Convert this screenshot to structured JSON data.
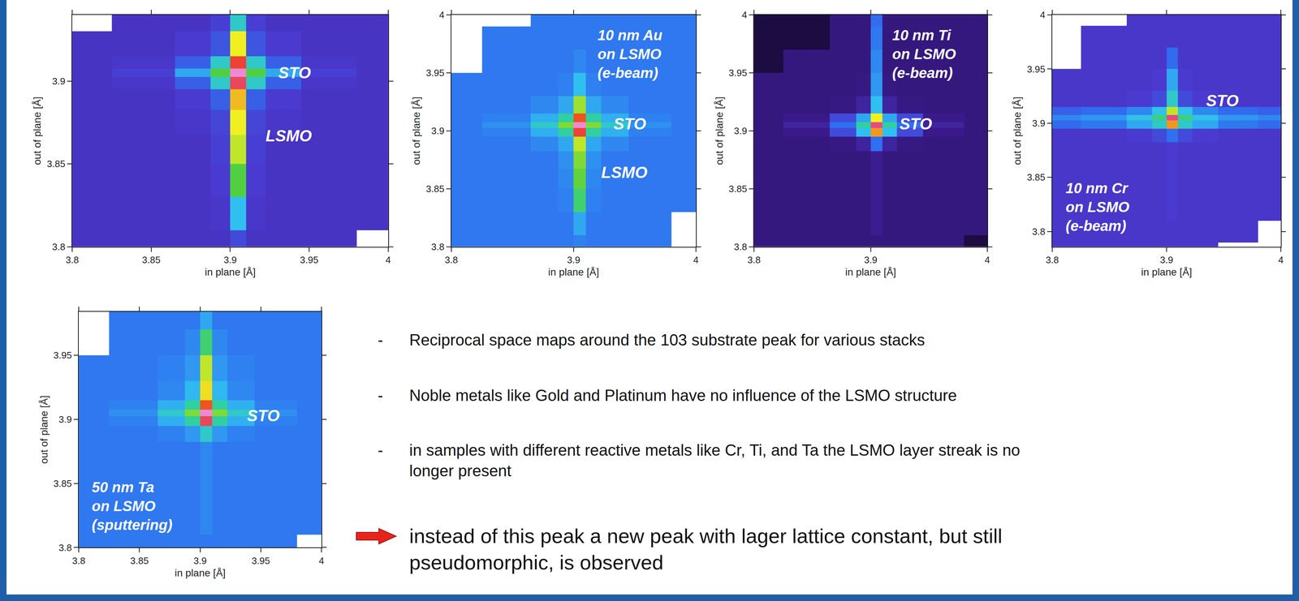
{
  "chart_data": [
    {
      "type": "heatmap",
      "x_label": "in plane [Å]",
      "y_label": "out of plane [Å]",
      "xlim": [
        3.8,
        4.0
      ],
      "ylim": [
        3.8,
        3.94
      ],
      "xticks": [
        3.8,
        3.85,
        3.9,
        3.95,
        4
      ],
      "yticks": [
        3.8,
        3.85,
        3.9
      ],
      "zlim": [
        0,
        10
      ],
      "x": [
        3.8,
        3.85,
        3.88,
        3.895,
        3.905,
        3.915,
        3.93,
        3.96,
        4.0
      ],
      "y": [
        3.78,
        3.8,
        3.82,
        3.84,
        3.86,
        3.875,
        3.89,
        3.9,
        3.905,
        3.91,
        3.92,
        3.94,
        3.96,
        3.98,
        4.0
      ],
      "z": [
        [
          2.3,
          2.3,
          2.3,
          2.3,
          2.6,
          2.3,
          2.3,
          null,
          null
        ],
        [
          2.3,
          2.3,
          2.3,
          2.3,
          2.8,
          2.3,
          2.3,
          2.3,
          null
        ],
        [
          2.3,
          2.3,
          2.3,
          2.4,
          4.5,
          2.4,
          2.3,
          2.3,
          2.3
        ],
        [
          2.3,
          2.3,
          2.3,
          2.5,
          6.5,
          2.5,
          2.3,
          2.3,
          2.3
        ],
        [
          2.3,
          2.3,
          2.3,
          2.6,
          7.2,
          2.6,
          2.3,
          2.3,
          2.3
        ],
        [
          2.3,
          2.3,
          2.4,
          2.7,
          7.5,
          2.7,
          2.4,
          2.3,
          2.3
        ],
        [
          2.3,
          2.3,
          2.5,
          3.2,
          7.8,
          3.2,
          2.5,
          2.3,
          2.3
        ],
        [
          2.3,
          2.4,
          3.2,
          5.0,
          8.8,
          5.0,
          3.2,
          2.4,
          2.3
        ],
        [
          2.3,
          2.6,
          4.2,
          6.5,
          9.6,
          6.5,
          4.2,
          2.6,
          2.3
        ],
        [
          2.3,
          2.4,
          3.2,
          5.0,
          8.6,
          5.0,
          3.2,
          2.4,
          2.3
        ],
        [
          2.3,
          2.3,
          2.5,
          3.0,
          7.5,
          3.0,
          2.5,
          2.3,
          2.3
        ],
        [
          null,
          2.3,
          2.3,
          2.6,
          5.0,
          2.6,
          2.3,
          2.3,
          2.3
        ],
        [
          null,
          2.3,
          2.3,
          2.3,
          2.5,
          2.3,
          2.3,
          2.3,
          2.3
        ],
        [
          null,
          2.3,
          2.3,
          2.3,
          2.3,
          2.3,
          2.3,
          2.3,
          2.3
        ],
        [
          null,
          2.3,
          2.3,
          2.3,
          2.3,
          2.3,
          2.3,
          2.3,
          2.3
        ]
      ],
      "annotations": [
        {
          "lines": [
            "STO"
          ],
          "x": 3.93,
          "y": 3.905
        },
        {
          "lines": [
            "LSMO"
          ],
          "x": 3.922,
          "y": 3.867
        }
      ]
    },
    {
      "type": "heatmap",
      "x_label": "in plane [Å]",
      "y_label": "out of plane [Å]",
      "xlim": [
        3.8,
        4.0
      ],
      "ylim": [
        3.8,
        4.0
      ],
      "xticks": [
        3.8,
        3.9,
        4
      ],
      "yticks": [
        3.8,
        3.85,
        3.9,
        3.95,
        4
      ],
      "zlim": [
        0,
        10
      ],
      "x": [
        3.8,
        3.85,
        3.88,
        3.895,
        3.905,
        3.915,
        3.93,
        3.96,
        4.0
      ],
      "y": [
        3.78,
        3.8,
        3.82,
        3.84,
        3.86,
        3.875,
        3.89,
        3.9,
        3.905,
        3.91,
        3.92,
        3.94,
        3.96,
        3.98,
        4.0
      ],
      "z": [
        [
          3.6,
          3.6,
          3.6,
          3.6,
          3.6,
          3.6,
          3.6,
          null,
          null
        ],
        [
          3.6,
          3.6,
          3.6,
          3.6,
          3.7,
          3.6,
          3.6,
          3.6,
          null
        ],
        [
          3.6,
          3.6,
          3.6,
          3.6,
          4.2,
          3.6,
          3.6,
          3.6,
          null
        ],
        [
          3.6,
          3.6,
          3.6,
          3.7,
          6.0,
          3.7,
          3.6,
          3.6,
          3.6
        ],
        [
          3.6,
          3.6,
          3.6,
          3.8,
          6.6,
          3.8,
          3.6,
          3.6,
          3.6
        ],
        [
          3.6,
          3.6,
          3.6,
          3.9,
          6.8,
          3.9,
          3.6,
          3.6,
          3.6
        ],
        [
          3.6,
          3.6,
          3.8,
          4.2,
          7.2,
          4.2,
          3.8,
          3.6,
          3.6
        ],
        [
          3.6,
          3.7,
          4.3,
          5.5,
          8.6,
          5.5,
          4.3,
          3.7,
          3.6
        ],
        [
          3.6,
          3.9,
          5.0,
          6.8,
          9.6,
          6.8,
          5.0,
          3.9,
          3.6
        ],
        [
          3.6,
          3.7,
          4.3,
          5.5,
          8.4,
          5.5,
          4.3,
          3.7,
          3.6
        ],
        [
          3.6,
          3.6,
          3.8,
          4.2,
          7.0,
          4.2,
          3.8,
          3.6,
          3.6
        ],
        [
          3.6,
          3.6,
          3.6,
          3.7,
          4.5,
          3.7,
          3.6,
          3.6,
          3.6
        ],
        [
          null,
          3.6,
          3.6,
          3.6,
          3.8,
          3.6,
          3.6,
          3.6,
          3.6
        ],
        [
          null,
          3.6,
          3.6,
          3.6,
          3.6,
          3.6,
          3.6,
          3.6,
          3.6
        ],
        [
          null,
          null,
          3.6,
          3.6,
          3.6,
          3.6,
          3.6,
          3.6,
          3.6
        ]
      ],
      "annotations": [
        {
          "lines": [
            "STO"
          ],
          "x": 3.932,
          "y": 3.906
        },
        {
          "lines": [
            "LSMO"
          ],
          "x": 3.922,
          "y": 3.864
        },
        {
          "lines": [
            "10 nm Au",
            "on LSMO",
            "(e-beam)"
          ],
          "x": 3.919,
          "y": 3.99
        }
      ]
    },
    {
      "type": "heatmap",
      "x_label": "in plane [Å]",
      "y_label": "out of plane [Å]",
      "xlim": [
        3.8,
        4.0
      ],
      "ylim": [
        3.8,
        4.0
      ],
      "xticks": [
        3.8,
        3.9,
        4
      ],
      "yticks": [
        3.8,
        3.85,
        3.9,
        3.95,
        4
      ],
      "zlim": [
        0,
        10
      ],
      "x": [
        3.8,
        3.85,
        3.88,
        3.895,
        3.905,
        3.915,
        3.93,
        3.96,
        4.0
      ],
      "y": [
        3.78,
        3.8,
        3.82,
        3.84,
        3.86,
        3.875,
        3.89,
        3.9,
        3.905,
        3.91,
        3.92,
        3.94,
        3.96,
        3.98,
        4.0
      ],
      "z": [
        [
          1.3,
          1.3,
          1.3,
          1.3,
          1.3,
          1.3,
          1.3,
          0.3,
          0.3
        ],
        [
          1.3,
          1.3,
          1.3,
          1.3,
          1.3,
          1.3,
          1.3,
          1.3,
          0.3
        ],
        [
          1.3,
          1.3,
          1.3,
          1.3,
          1.6,
          1.3,
          1.3,
          1.3,
          1.3
        ],
        [
          1.3,
          1.3,
          1.3,
          1.3,
          1.6,
          1.3,
          1.3,
          1.3,
          1.3
        ],
        [
          1.3,
          1.3,
          1.3,
          1.3,
          1.6,
          1.3,
          1.3,
          1.3,
          1.3
        ],
        [
          1.3,
          1.3,
          1.3,
          1.3,
          1.6,
          1.3,
          1.3,
          1.3,
          1.3
        ],
        [
          1.3,
          1.3,
          1.4,
          1.8,
          3.5,
          1.8,
          1.4,
          1.3,
          1.3
        ],
        [
          1.3,
          1.5,
          2.8,
          4.5,
          8.0,
          4.5,
          2.8,
          1.5,
          1.3
        ],
        [
          1.3,
          1.8,
          3.5,
          5.5,
          9.0,
          5.5,
          3.5,
          1.8,
          1.3
        ],
        [
          1.3,
          1.5,
          2.8,
          4.2,
          7.5,
          4.2,
          2.8,
          1.5,
          1.3
        ],
        [
          1.3,
          1.3,
          1.4,
          1.8,
          4.5,
          1.8,
          1.4,
          1.3,
          1.3
        ],
        [
          1.3,
          1.3,
          1.3,
          1.4,
          4.0,
          1.4,
          1.3,
          1.3,
          1.3
        ],
        [
          0.3,
          1.3,
          1.3,
          1.3,
          3.8,
          1.3,
          1.3,
          1.3,
          1.3
        ],
        [
          0.3,
          0.3,
          1.3,
          1.3,
          3.6,
          1.3,
          1.3,
          1.3,
          1.3
        ],
        [
          0.3,
          0.3,
          1.3,
          1.3,
          3.4,
          1.3,
          1.3,
          1.3,
          1.3
        ]
      ],
      "annotations": [
        {
          "lines": [
            "STO"
          ],
          "x": 3.924,
          "y": 3.906
        },
        {
          "lines": [
            "10 nm Ti",
            "on LSMO",
            "(e-beam)"
          ],
          "x": 3.918,
          "y": 3.99
        }
      ]
    },
    {
      "type": "heatmap",
      "x_label": "in plane [Å]",
      "y_label": "out of plane [Å]",
      "xlim": [
        3.8,
        4.0
      ],
      "ylim": [
        3.786,
        4.0
      ],
      "xticks": [
        3.8,
        3.9,
        4
      ],
      "yticks": [
        3.8,
        3.85,
        3.9,
        3.95,
        4
      ],
      "zlim": [
        0,
        10
      ],
      "x": [
        3.8,
        3.85,
        3.88,
        3.895,
        3.905,
        3.915,
        3.93,
        3.96,
        4.0
      ],
      "y": [
        3.78,
        3.8,
        3.82,
        3.84,
        3.86,
        3.875,
        3.89,
        3.9,
        3.905,
        3.91,
        3.92,
        3.94,
        3.96,
        3.98,
        4.0
      ],
      "z": [
        [
          2.4,
          2.4,
          2.4,
          2.4,
          2.4,
          2.4,
          2.4,
          null,
          null
        ],
        [
          2.4,
          2.4,
          2.4,
          2.4,
          2.4,
          2.4,
          2.4,
          2.4,
          null
        ],
        [
          2.4,
          2.4,
          2.4,
          2.4,
          2.5,
          2.4,
          2.4,
          2.4,
          2.4
        ],
        [
          2.4,
          2.4,
          2.4,
          2.4,
          2.5,
          2.4,
          2.4,
          2.4,
          2.4
        ],
        [
          2.4,
          2.4,
          2.4,
          2.4,
          2.5,
          2.4,
          2.4,
          2.4,
          2.4
        ],
        [
          2.4,
          2.4,
          2.4,
          2.4,
          2.5,
          2.4,
          2.4,
          2.4,
          2.4
        ],
        [
          2.4,
          2.4,
          2.5,
          2.8,
          3.5,
          2.8,
          2.5,
          2.4,
          2.4
        ],
        [
          3.4,
          3.6,
          4.2,
          5.0,
          8.0,
          5.0,
          4.2,
          3.6,
          3.4
        ],
        [
          3.8,
          4.0,
          4.6,
          5.8,
          9.0,
          5.8,
          4.6,
          4.0,
          3.8
        ],
        [
          3.2,
          3.4,
          3.8,
          4.6,
          7.2,
          4.6,
          3.8,
          3.4,
          3.2
        ],
        [
          2.4,
          2.4,
          2.5,
          2.8,
          5.0,
          2.8,
          2.5,
          2.4,
          2.4
        ],
        [
          2.4,
          2.4,
          2.4,
          2.5,
          4.2,
          2.5,
          2.4,
          2.4,
          2.4
        ],
        [
          null,
          2.4,
          2.4,
          2.4,
          3.4,
          2.4,
          2.4,
          2.4,
          2.4
        ],
        [
          null,
          2.4,
          2.4,
          2.4,
          2.4,
          2.4,
          2.4,
          2.4,
          2.4
        ],
        [
          null,
          null,
          2.4,
          2.4,
          2.4,
          2.4,
          2.4,
          2.4,
          2.4
        ]
      ],
      "annotations": [
        {
          "lines": [
            "STO"
          ],
          "x": 3.934,
          "y": 3.921
        },
        {
          "lines": [
            "10 nm Cr",
            "on LSMO",
            "(e-beam)"
          ],
          "x": 3.811,
          "y": 3.848
        }
      ]
    },
    {
      "type": "heatmap",
      "x_label": "in plane [Å]",
      "y_label": "out of plane [Å]",
      "xlim": [
        3.8,
        4.0
      ],
      "ylim": [
        3.8,
        3.984
      ],
      "xticks": [
        3.8,
        3.85,
        3.9,
        3.95,
        4
      ],
      "yticks": [
        3.8,
        3.85,
        3.9,
        3.95
      ],
      "zlim": [
        0,
        10
      ],
      "x": [
        3.8,
        3.85,
        3.88,
        3.895,
        3.905,
        3.915,
        3.93,
        3.96,
        4.0
      ],
      "y": [
        3.78,
        3.8,
        3.82,
        3.84,
        3.86,
        3.875,
        3.89,
        3.9,
        3.905,
        3.91,
        3.92,
        3.94,
        3.96,
        3.98,
        4.0
      ],
      "z": [
        [
          3.6,
          3.6,
          3.6,
          3.6,
          3.6,
          3.6,
          3.6,
          null,
          null
        ],
        [
          3.6,
          3.6,
          3.6,
          3.6,
          3.6,
          3.6,
          3.6,
          3.6,
          null
        ],
        [
          3.6,
          3.6,
          3.6,
          3.6,
          3.8,
          3.6,
          3.6,
          3.6,
          3.6
        ],
        [
          3.6,
          3.6,
          3.6,
          3.6,
          3.8,
          3.6,
          3.6,
          3.6,
          3.6
        ],
        [
          3.6,
          3.6,
          3.6,
          3.6,
          3.8,
          3.6,
          3.6,
          3.6,
          3.6
        ],
        [
          3.6,
          3.6,
          3.6,
          3.6,
          3.8,
          3.6,
          3.6,
          3.6,
          3.6
        ],
        [
          3.6,
          3.6,
          3.7,
          4.0,
          5.0,
          4.0,
          3.7,
          3.6,
          3.6
        ],
        [
          3.6,
          3.7,
          4.3,
          5.5,
          8.8,
          5.5,
          4.3,
          3.7,
          3.6
        ],
        [
          3.6,
          3.9,
          5.0,
          6.8,
          9.6,
          6.8,
          5.0,
          3.9,
          3.6
        ],
        [
          3.6,
          3.7,
          4.3,
          5.5,
          8.4,
          5.5,
          4.3,
          3.7,
          3.6
        ],
        [
          3.6,
          3.6,
          3.8,
          4.4,
          7.6,
          4.4,
          3.8,
          3.6,
          3.6
        ],
        [
          3.6,
          3.6,
          3.7,
          4.0,
          7.2,
          4.0,
          3.7,
          3.6,
          3.6
        ],
        [
          null,
          3.6,
          3.6,
          3.8,
          6.0,
          3.8,
          3.6,
          3.6,
          3.6
        ],
        [
          null,
          3.6,
          3.6,
          3.6,
          4.2,
          3.6,
          3.6,
          3.6,
          3.6
        ],
        [
          null,
          null,
          3.6,
          3.6,
          3.6,
          3.6,
          3.6,
          3.6,
          3.6
        ]
      ],
      "annotations": [
        {
          "lines": [
            "STO"
          ],
          "x": 3.938,
          "y": 3.903
        },
        {
          "lines": [
            "50 nm Ta",
            "on LSMO",
            "(sputtering)"
          ],
          "x": 3.81,
          "y": 3.854
        }
      ]
    }
  ],
  "notes": {
    "bullet": "-",
    "bullets": [
      "Reciprocal space maps around the 103 substrate peak for various stacks",
      "Noble metals like Gold and Platinum have no influence of the LSMO structure",
      "in samples with different reactive metals like Cr, Ti, and Ta the LSMO layer streak is no longer present"
    ],
    "conclusion": "instead of this peak a new peak with lager lattice constant, but still pseudomorphic, is observed"
  }
}
